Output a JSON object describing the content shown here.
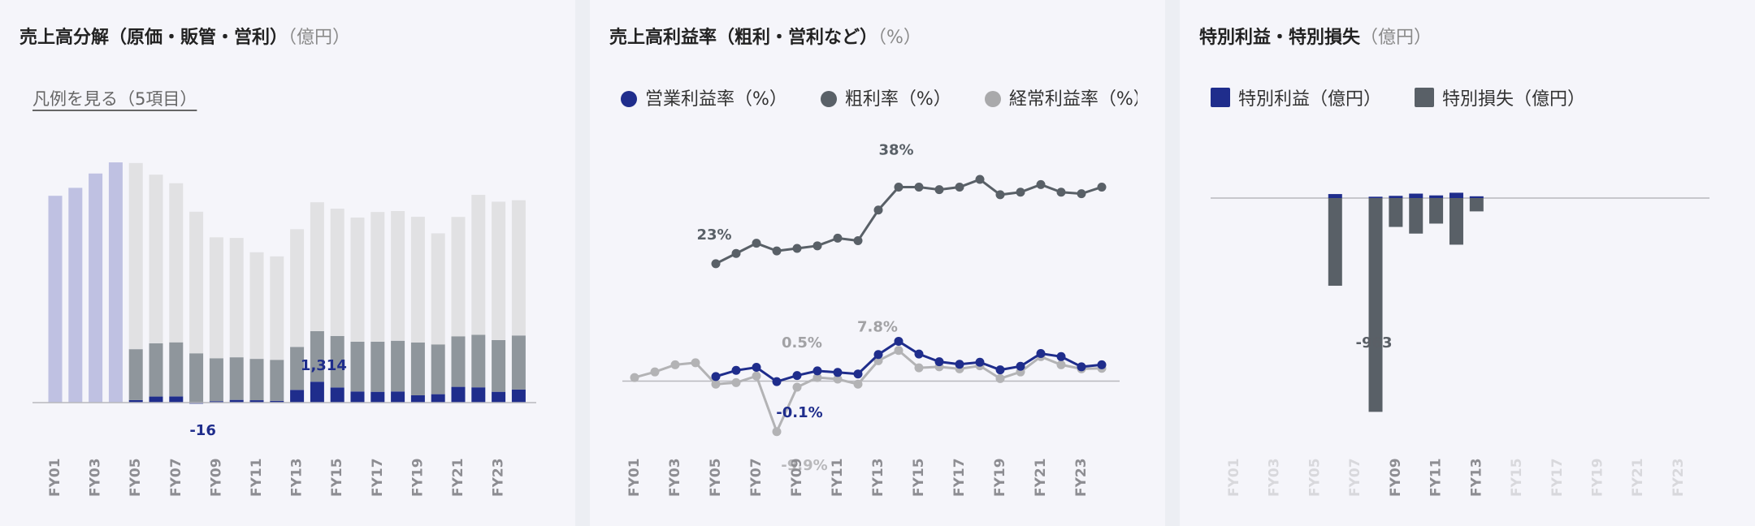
{
  "panels": [
    {
      "title": "売上高分解（原価・販管・営利）",
      "unit": "（億円）",
      "legend_link": "凡例を見る（5項目）"
    },
    {
      "title": "売上高利益率（粗利・営利など）",
      "unit": "（%）"
    },
    {
      "title": "特別利益・特別損失",
      "unit": "（億円）"
    }
  ],
  "colors": {
    "navy": "#1f2d8c",
    "dark_gray": "#596067",
    "light_gray": "#a9a9ab",
    "pale": "#e1e1e3",
    "lavender": "#bfc1e2",
    "zero_line": "#b8b8bd",
    "faded_tick": "#d8d8dc",
    "tick": "#8d8d92"
  },
  "chart_data": [
    {
      "type": "bar",
      "stacked": true,
      "categories": [
        "FY01",
        "FY02",
        "FY03",
        "FY04",
        "FY05",
        "FY06",
        "FY07",
        "FY08",
        "FY09",
        "FY10",
        "FY11",
        "FY12",
        "FY13",
        "FY14",
        "FY15",
        "FY16",
        "FY17",
        "FY18",
        "FY19",
        "FY20",
        "FY21",
        "FY22",
        "FY23",
        "FY24"
      ],
      "tick_labels": [
        "FY01",
        "FY03",
        "FY05",
        "FY07",
        "FY09",
        "FY11",
        "FY13",
        "FY15",
        "FY17",
        "FY19",
        "FY21",
        "FY23"
      ],
      "total_only_years": [
        "FY01",
        "FY02",
        "FY03",
        "FY04"
      ],
      "series": [
        {
          "key": "op",
          "values": [
            null,
            null,
            null,
            null,
            160,
            380,
            390,
            -16,
            90,
            170,
            150,
            110,
            800,
            1314,
            950,
            700,
            680,
            700,
            460,
            530,
            990,
            960,
            680,
            820
          ]
        },
        {
          "key": "sga",
          "values": [
            null,
            null,
            null,
            null,
            3200,
            3350,
            3400,
            3100,
            2700,
            2680,
            2600,
            2580,
            2700,
            3180,
            3240,
            3130,
            3150,
            3190,
            3320,
            3130,
            3180,
            3300,
            3250,
            3400
          ]
        },
        {
          "key": "cost",
          "values": [
            null,
            null,
            null,
            null,
            11700,
            10600,
            10000,
            8900,
            7600,
            7500,
            6700,
            6500,
            7400,
            8100,
            8000,
            7800,
            8150,
            8150,
            7900,
            6980,
            7500,
            8800,
            8700,
            8500
          ]
        },
        {
          "key": "sales_total",
          "values": [
            13000,
            13500,
            14400,
            15100,
            null,
            null,
            null,
            null,
            null,
            null,
            null,
            null,
            null,
            null,
            null,
            null,
            null,
            null,
            null,
            null,
            null,
            null,
            null,
            null
          ]
        }
      ],
      "annotations": [
        {
          "year": "FY14",
          "text": "1,314"
        },
        {
          "year": "FY08",
          "text": "-16"
        }
      ],
      "ylim": [
        -2000,
        16500
      ]
    },
    {
      "type": "line",
      "categories": [
        "FY01",
        "FY02",
        "FY03",
        "FY04",
        "FY05",
        "FY06",
        "FY07",
        "FY08",
        "FY09",
        "FY10",
        "FY11",
        "FY12",
        "FY13",
        "FY14",
        "FY15",
        "FY16",
        "FY17",
        "FY18",
        "FY19",
        "FY20",
        "FY21",
        "FY22",
        "FY23",
        "FY24"
      ],
      "tick_labels": [
        "FY01",
        "FY03",
        "FY05",
        "FY07",
        "FY09",
        "FY11",
        "FY13",
        "FY15",
        "FY17",
        "FY19",
        "FY21",
        "FY23"
      ],
      "series": [
        {
          "name": "営業利益率（%）",
          "values": [
            null,
            null,
            null,
            null,
            0.9,
            2.1,
            2.7,
            -0.1,
            1.1,
            2.0,
            1.7,
            1.4,
            5.2,
            7.8,
            5.3,
            3.8,
            3.3,
            3.7,
            2.2,
            2.9,
            5.4,
            4.8,
            2.8,
            3.2
          ]
        },
        {
          "name": "粗利率（%）",
          "values": [
            null,
            null,
            null,
            null,
            23,
            25,
            27,
            25.5,
            26,
            26.5,
            28,
            27.5,
            33.5,
            38,
            38,
            37.5,
            38,
            39.5,
            36.5,
            37,
            38.5,
            37,
            36.7,
            38
          ]
        },
        {
          "name": "経常利益率（%）",
          "values": [
            0.7,
            1.8,
            3.2,
            3.6,
            -0.6,
            -0.3,
            1.0,
            -9.9,
            -1.2,
            0.7,
            0.4,
            -0.6,
            4.0,
            6.0,
            2.6,
            2.8,
            2.4,
            3.0,
            0.5,
            1.8,
            4.8,
            3.2,
            2.4,
            2.5
          ]
        }
      ],
      "annotations": [
        {
          "text": "23%"
        },
        {
          "text": "38%"
        },
        {
          "text": "7.8%"
        },
        {
          "text": "0.5%"
        },
        {
          "text": "-0.1%"
        },
        {
          "text": "-9.9%"
        }
      ],
      "ylim": [
        -12,
        45
      ]
    },
    {
      "type": "bar",
      "categories": [
        "FY01",
        "FY02",
        "FY03",
        "FY04",
        "FY05",
        "FY06",
        "FY07",
        "FY08",
        "FY09",
        "FY10",
        "FY11",
        "FY12",
        "FY13",
        "FY14",
        "FY15",
        "FY16",
        "FY17",
        "FY18",
        "FY19",
        "FY20",
        "FY21",
        "FY22",
        "FY23",
        "FY24"
      ],
      "tick_labels": [
        "FY01",
        "FY03",
        "FY05",
        "FY07",
        "FY09",
        "FY11",
        "FY13",
        "FY15",
        "FY17",
        "FY19",
        "FY21",
        "FY23"
      ],
      "active_years": [
        "FY06",
        "FY08",
        "FY09",
        "FY10",
        "FY11",
        "FY12",
        "FY13"
      ],
      "series": [
        {
          "name": "特別利益（億円）",
          "values": [
            null,
            null,
            null,
            null,
            null,
            18,
            null,
            6,
            10,
            20,
            12,
            24,
            8,
            null,
            null,
            null,
            null,
            null,
            null,
            null,
            null,
            null,
            null,
            null
          ]
        },
        {
          "name": "特別損失（億円）",
          "values": [
            null,
            null,
            null,
            null,
            null,
            -395,
            null,
            -963,
            -130,
            -160,
            -115,
            -210,
            -60,
            null,
            null,
            null,
            null,
            null,
            null,
            null,
            null,
            null,
            null,
            null
          ]
        }
      ],
      "annotations": [
        {
          "year": "FY08",
          "text": "-963"
        }
      ],
      "ylim": [
        -1000,
        80
      ]
    }
  ]
}
